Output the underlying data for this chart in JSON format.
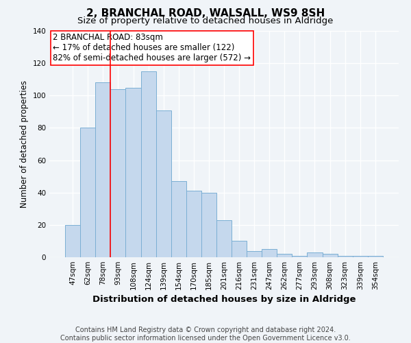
{
  "title1": "2, BRANCHAL ROAD, WALSALL, WS9 8SH",
  "title2": "Size of property relative to detached houses in Aldridge",
  "xlabel": "Distribution of detached houses by size in Aldridge",
  "ylabel": "Number of detached properties",
  "categories": [
    "47sqm",
    "62sqm",
    "78sqm",
    "93sqm",
    "108sqm",
    "124sqm",
    "139sqm",
    "154sqm",
    "170sqm",
    "185sqm",
    "201sqm",
    "216sqm",
    "231sqm",
    "247sqm",
    "262sqm",
    "277sqm",
    "293sqm",
    "308sqm",
    "323sqm",
    "339sqm",
    "354sqm"
  ],
  "values": [
    20,
    80,
    108,
    104,
    105,
    115,
    91,
    47,
    41,
    40,
    23,
    10,
    4,
    5,
    2,
    1,
    3,
    2,
    1,
    1,
    1
  ],
  "bar_color": "#c5d8ed",
  "bar_edge_color": "#7bafd4",
  "ylim": [
    0,
    140
  ],
  "yticks": [
    0,
    20,
    40,
    60,
    80,
    100,
    120,
    140
  ],
  "red_line_x": 2.5,
  "annotation_title": "2 BRANCHAL ROAD: 83sqm",
  "annotation_line1": "← 17% of detached houses are smaller (122)",
  "annotation_line2": "82% of semi-detached houses are larger (572) →",
  "footer1": "Contains HM Land Registry data © Crown copyright and database right 2024.",
  "footer2": "Contains public sector information licensed under the Open Government Licence v3.0.",
  "title1_fontsize": 11,
  "title2_fontsize": 9.5,
  "xlabel_fontsize": 9.5,
  "ylabel_fontsize": 8.5,
  "tick_fontsize": 7.5,
  "annotation_fontsize": 8.5,
  "footer_fontsize": 7,
  "background_color": "#f0f4f8",
  "grid_color": "#ffffff"
}
